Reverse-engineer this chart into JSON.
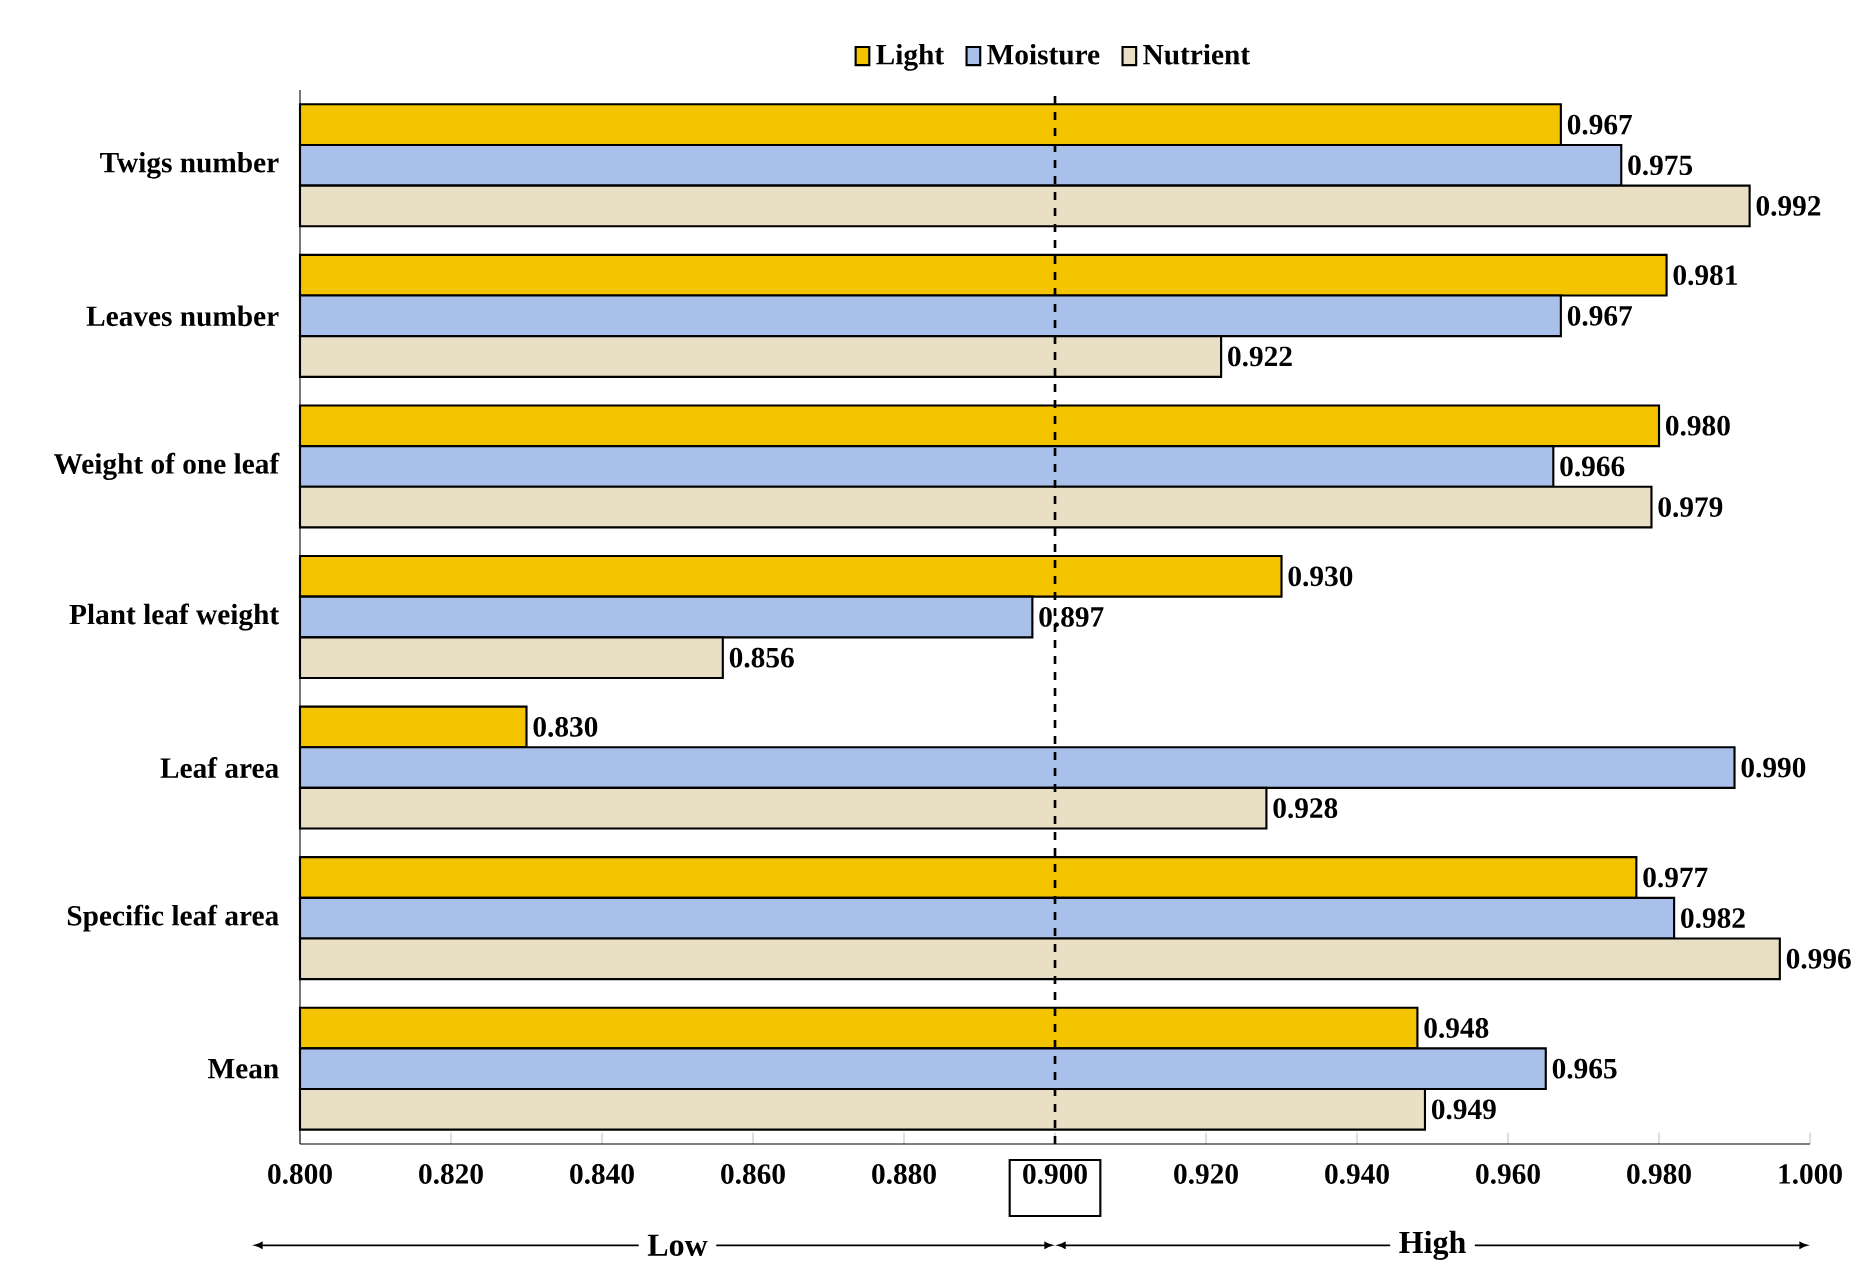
{
  "chart_data": {
    "type": "bar",
    "orientation": "horizontal",
    "categories": [
      "Twigs number",
      "Leaves number",
      "Weight of one leaf",
      "Plant leaf weight",
      "Leaf area",
      "Specific leaf area",
      "Mean"
    ],
    "series": [
      {
        "name": "Light",
        "color": "#f5c400",
        "values": [
          0.967,
          0.981,
          0.98,
          0.93,
          0.83,
          0.977,
          0.948
        ],
        "value_labels": [
          "0.967",
          "0.981",
          "0.980",
          "0.930",
          "0.830",
          "0.977",
          "0.948"
        ]
      },
      {
        "name": "Moisture",
        "color": "#a9c1ea",
        "values": [
          0.975,
          0.967,
          0.966,
          0.897,
          0.99,
          0.982,
          0.965
        ],
        "value_labels": [
          "0.975",
          "0.967",
          "0.966",
          "0.897",
          "0.990",
          "0.982",
          "0.965"
        ]
      },
      {
        "name": "Nutrient",
        "color": "#e9dfc4",
        "values": [
          0.992,
          0.922,
          0.979,
          0.856,
          0.928,
          0.996,
          0.949
        ],
        "value_labels": [
          "0.992",
          "0.922",
          "0.979",
          "0.856",
          "0.928",
          "0.996",
          "0.949"
        ]
      }
    ],
    "xlim": [
      0.8,
      1.0
    ],
    "xticks": [
      {
        "value": 0.8,
        "label": "0.800"
      },
      {
        "value": 0.82,
        "label": "0.820"
      },
      {
        "value": 0.84,
        "label": "0.840"
      },
      {
        "value": 0.86,
        "label": "0.860"
      },
      {
        "value": 0.88,
        "label": "0.880"
      },
      {
        "value": 0.9,
        "label": "0.900"
      },
      {
        "value": 0.92,
        "label": "0.920"
      },
      {
        "value": 0.94,
        "label": "0.940"
      },
      {
        "value": 0.96,
        "label": "0.960"
      },
      {
        "value": 0.98,
        "label": "0.980"
      },
      {
        "value": 1.0,
        "label": "1.000"
      }
    ],
    "ref_lines": [
      {
        "axis": "x",
        "value": 0.9,
        "line_style": "dashed"
      }
    ],
    "annotations": [
      "Low",
      "High"
    ],
    "legend": "top"
  }
}
